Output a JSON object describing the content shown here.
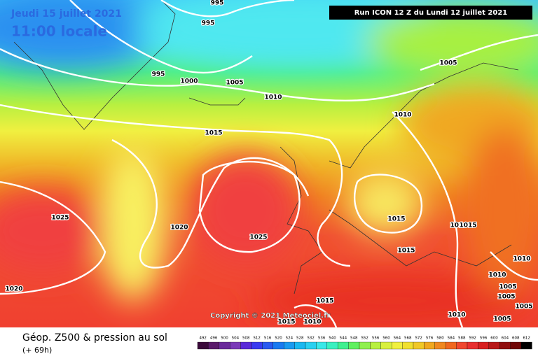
{
  "header": {
    "date": "Jeudi 15 juillet 2021",
    "time": "11:00 locale",
    "run": "Run ICON 12 Z du Lundi 12 juillet 2021"
  },
  "copyright": "Copyright © 2021 Meteociel.fr",
  "footer": {
    "title": "Géop. Z500 & pression au sol",
    "lead": "(+ 69h)"
  },
  "isobar_labels": [
    995,
    995,
    995,
    1000,
    1005,
    1010,
    1005,
    1010,
    1015,
    1025,
    1020,
    1025,
    1015,
    1010,
    1015,
    1015,
    1020,
    1015,
    1015,
    1010,
    1010,
    1005,
    1010,
    1005,
    1005,
    1010,
    1005
  ],
  "legend": {
    "values": [
      492,
      496,
      500,
      504,
      508,
      512,
      516,
      520,
      524,
      528,
      532,
      536,
      540,
      544,
      548,
      552,
      556,
      560,
      564,
      568,
      572,
      576,
      580,
      584,
      588,
      592,
      596,
      600,
      604,
      608,
      612
    ],
    "colors": [
      "#3a0a3a",
      "#5a1a6a",
      "#6a2a9a",
      "#7a3ab8",
      "#5a2ad8",
      "#3a3af0",
      "#2a5af0",
      "#1a7af0",
      "#1a9af0",
      "#1ab8f0",
      "#2ad0f0",
      "#3ae8e8",
      "#3af0c0",
      "#40f090",
      "#60f060",
      "#90f050",
      "#b8f040",
      "#d8f040",
      "#f0f040",
      "#f0e030",
      "#f0c828",
      "#f0a820",
      "#f08820",
      "#f06820",
      "#f04830",
      "#e83030",
      "#d82020",
      "#b81818",
      "#901010",
      "#700808",
      "#000000"
    ]
  }
}
